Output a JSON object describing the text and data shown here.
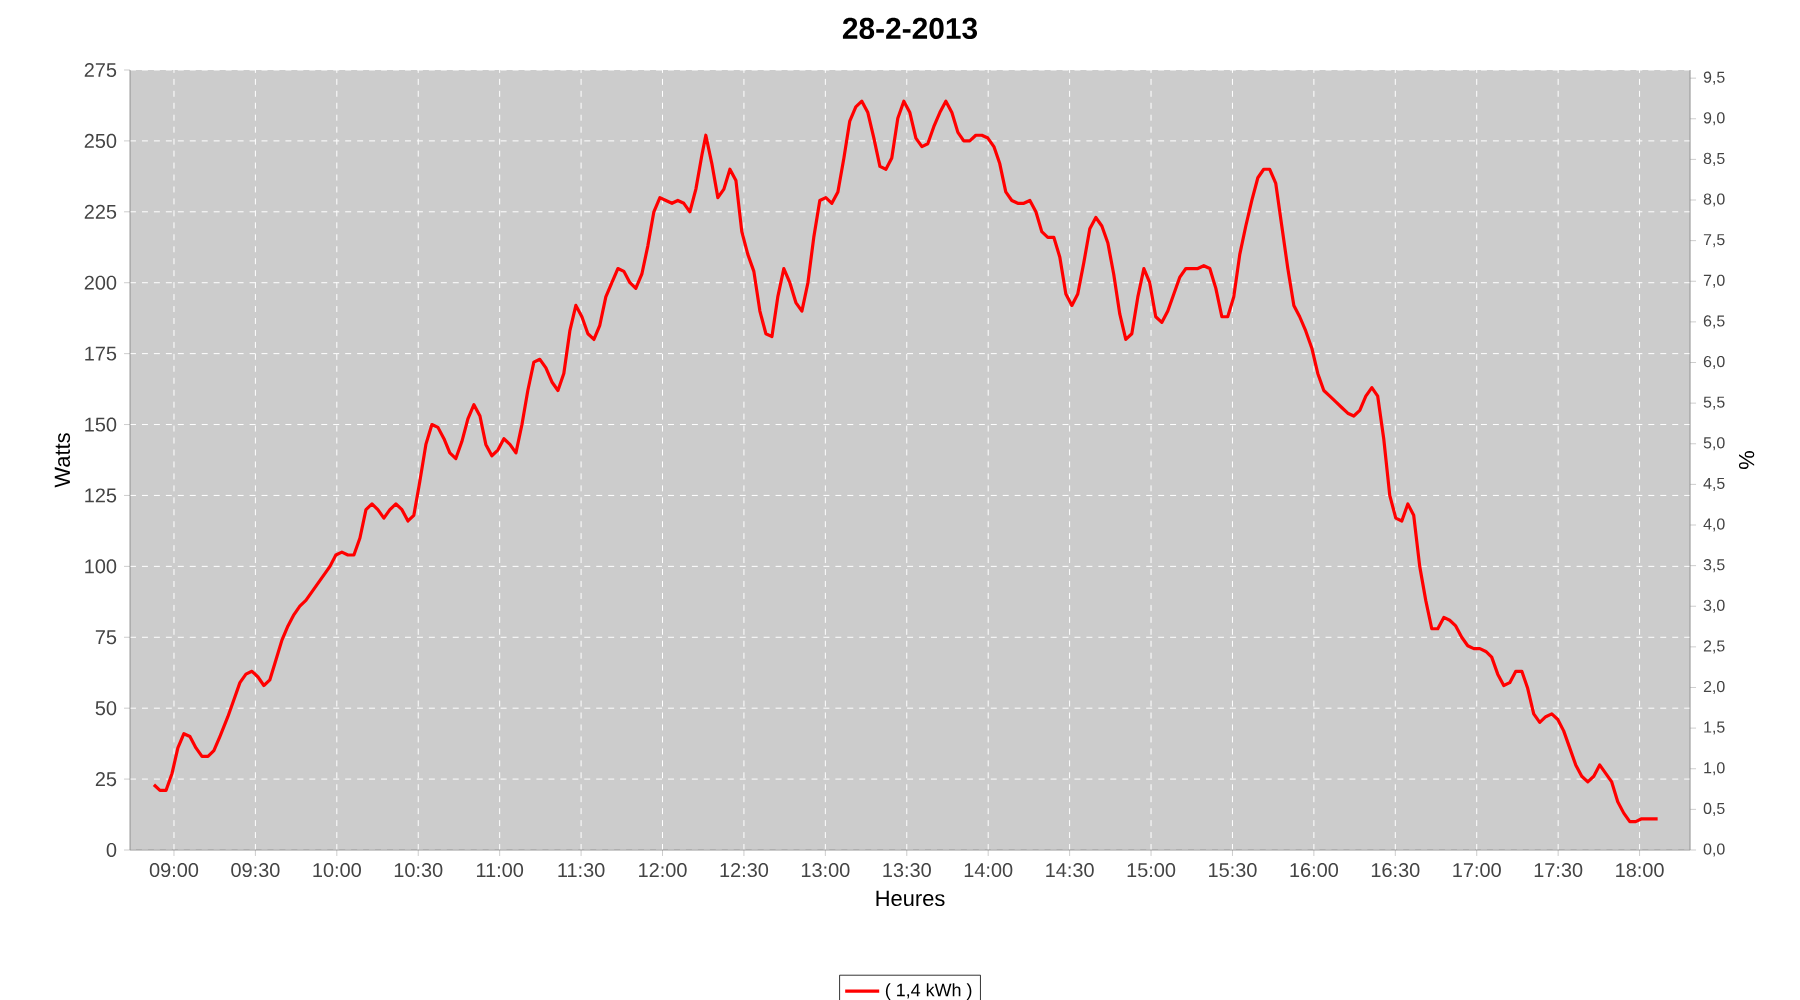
{
  "chart_data": {
    "type": "line",
    "title": "28-2-2013",
    "xlabel": "Heures",
    "ylabel": "Watts",
    "y2label": "%",
    "xlim": [
      8.73,
      18.31
    ],
    "ylim": [
      0,
      275
    ],
    "y2lim": [
      0,
      9.6
    ],
    "xticks": [
      {
        "value": 9,
        "label": "09:00"
      },
      {
        "value": 9.5,
        "label": "09:30"
      },
      {
        "value": 10,
        "label": "10:00"
      },
      {
        "value": 10.5,
        "label": "10:30"
      },
      {
        "value": 11,
        "label": "11:00"
      },
      {
        "value": 11.5,
        "label": "11:30"
      },
      {
        "value": 12,
        "label": "12:00"
      },
      {
        "value": 12.5,
        "label": "12:30"
      },
      {
        "value": 13,
        "label": "13:00"
      },
      {
        "value": 13.5,
        "label": "13:30"
      },
      {
        "value": 14,
        "label": "14:00"
      },
      {
        "value": 14.5,
        "label": "14:30"
      },
      {
        "value": 15,
        "label": "15:00"
      },
      {
        "value": 15.5,
        "label": "15:30"
      },
      {
        "value": 16,
        "label": "16:00"
      },
      {
        "value": 16.5,
        "label": "16:30"
      },
      {
        "value": 17,
        "label": "17:00"
      },
      {
        "value": 17.5,
        "label": "17:30"
      },
      {
        "value": 18,
        "label": "18:00"
      }
    ],
    "yticks": [
      0,
      25,
      50,
      75,
      100,
      125,
      150,
      175,
      200,
      225,
      250,
      275
    ],
    "y2ticks": [
      {
        "value": 0,
        "label": "0,0"
      },
      {
        "value": 0.5,
        "label": "0,5"
      },
      {
        "value": 1,
        "label": "1,0"
      },
      {
        "value": 1.5,
        "label": "1,5"
      },
      {
        "value": 2,
        "label": "2,0"
      },
      {
        "value": 2.5,
        "label": "2,5"
      },
      {
        "value": 3,
        "label": "3,0"
      },
      {
        "value": 3.5,
        "label": "3,5"
      },
      {
        "value": 4,
        "label": "4,0"
      },
      {
        "value": 4.5,
        "label": "4,5"
      },
      {
        "value": 5,
        "label": "5,0"
      },
      {
        "value": 5.5,
        "label": "5,5"
      },
      {
        "value": 6,
        "label": "6,0"
      },
      {
        "value": 6.5,
        "label": "6,5"
      },
      {
        "value": 7,
        "label": "7,0"
      },
      {
        "value": 7.5,
        "label": "7,5"
      },
      {
        "value": 8,
        "label": "8,0"
      },
      {
        "value": 8.5,
        "label": "8,5"
      },
      {
        "value": 9,
        "label": "9,0"
      },
      {
        "value": 9.5,
        "label": "9,5"
      }
    ],
    "grid": true,
    "legend": "bottom",
    "marker": "none",
    "line_style": "solid",
    "series": [
      {
        "name": "( 1,4 kWh )",
        "color": "#ff0000",
        "x": [
          8.877,
          8.914,
          8.951,
          8.988,
          9.024,
          9.061,
          9.098,
          9.135,
          9.172,
          9.209,
          9.245,
          9.282,
          9.331,
          9.368,
          9.405,
          9.442,
          9.479,
          9.516,
          9.552,
          9.589,
          9.626,
          9.663,
          9.7,
          9.737,
          9.773,
          9.81,
          9.847,
          9.884,
          9.921,
          9.958,
          9.994,
          10.031,
          10.068,
          10.105,
          10.142,
          10.179,
          10.216,
          10.252,
          10.289,
          10.326,
          10.363,
          10.4,
          10.437,
          10.473,
          10.51,
          10.547,
          10.584,
          10.621,
          10.658,
          10.694,
          10.731,
          10.768,
          10.805,
          10.842,
          10.879,
          10.915,
          10.952,
          10.989,
          11.026,
          11.063,
          11.1,
          11.137,
          11.173,
          11.21,
          11.247,
          11.284,
          11.321,
          11.358,
          11.394,
          11.431,
          11.468,
          11.505,
          11.542,
          11.579,
          11.615,
          11.652,
          11.689,
          11.726,
          11.763,
          11.8,
          11.836,
          11.873,
          11.91,
          11.947,
          11.984,
          12.021,
          12.058,
          12.094,
          12.131,
          12.168,
          12.205,
          12.242,
          12.266,
          12.303,
          12.34,
          12.377,
          12.414,
          12.451,
          12.487,
          12.524,
          12.561,
          12.598,
          12.635,
          12.672,
          12.708,
          12.745,
          12.782,
          12.819,
          12.856,
          12.893,
          12.929,
          12.966,
          13.003,
          13.04,
          13.077,
          13.114,
          13.15,
          13.187,
          13.224,
          13.261,
          13.298,
          13.335,
          13.372,
          13.408,
          13.445,
          13.482,
          13.519,
          13.556,
          13.593,
          13.629,
          13.666,
          13.703,
          13.74,
          13.777,
          13.814,
          13.85,
          13.887,
          13.924,
          13.961,
          13.998,
          14.035,
          14.071,
          14.108,
          14.145,
          14.182,
          14.219,
          14.256,
          14.293,
          14.329,
          14.366,
          14.403,
          14.44,
          14.477,
          14.514,
          14.55,
          14.587,
          14.624,
          14.661,
          14.698,
          14.735,
          14.771,
          14.808,
          14.845,
          14.882,
          14.919,
          14.956,
          14.992,
          15.029,
          15.066,
          15.103,
          15.14,
          15.177,
          15.214,
          15.25,
          15.287,
          15.324,
          15.361,
          15.398,
          15.435,
          15.471,
          15.508,
          15.545,
          15.582,
          15.619,
          15.656,
          15.692,
          15.729,
          15.766,
          15.803,
          15.84,
          15.877,
          15.913,
          15.95,
          15.987,
          16.024,
          16.061,
          16.098,
          16.135,
          16.171,
          16.208,
          16.245,
          16.282,
          16.319,
          16.356,
          16.392,
          16.429,
          16.466,
          16.503,
          16.54,
          16.577,
          16.613,
          16.65,
          16.687,
          16.724,
          16.761,
          16.798,
          16.834,
          16.871,
          16.908,
          16.945,
          16.982,
          17.019,
          17.056,
          17.092,
          17.129,
          17.166,
          17.203,
          17.24,
          17.277,
          17.313,
          17.35,
          17.387,
          17.424,
          17.461,
          17.498,
          17.534,
          17.571,
          17.608,
          17.645,
          17.682,
          17.719,
          17.755,
          17.792,
          17.829,
          17.866,
          17.903,
          17.94,
          17.976,
          18.013,
          18.05,
          18.087,
          18.111
        ],
        "values": [
          23,
          21,
          21,
          27,
          36,
          41,
          40,
          36,
          33,
          33,
          35,
          40,
          47,
          53,
          59,
          62,
          63,
          61,
          58,
          60,
          67,
          74,
          79,
          83,
          86,
          88,
          91,
          94,
          97,
          100,
          104,
          105,
          104,
          104,
          110,
          120,
          122,
          120,
          117,
          120,
          122,
          120,
          116,
          118,
          130,
          143,
          150,
          149,
          145,
          140,
          138,
          144,
          152,
          157,
          153,
          143,
          139,
          141,
          145,
          143,
          140,
          150,
          162,
          172,
          173,
          170,
          165,
          162,
          168,
          183,
          192,
          188,
          182,
          180,
          185,
          195,
          200,
          205,
          204,
          200,
          198,
          203,
          213,
          225,
          230,
          229,
          228,
          229,
          228,
          225,
          233,
          245,
          252,
          242,
          230,
          233,
          240,
          236,
          218,
          210,
          204,
          190,
          182,
          181,
          195,
          205,
          200,
          193,
          190,
          200,
          216,
          229,
          230,
          228,
          232,
          244,
          257,
          262,
          264,
          260,
          251,
          241,
          240,
          244,
          258,
          264,
          260,
          251,
          248,
          249,
          255,
          260,
          264,
          260,
          253,
          250,
          250,
          252,
          252,
          251,
          248,
          242,
          232,
          229,
          228,
          228,
          229,
          225,
          218,
          216,
          216,
          209,
          196,
          192,
          196,
          207,
          219,
          223,
          220,
          214,
          203,
          189,
          180,
          182,
          195,
          205,
          200,
          188,
          186,
          190,
          196,
          202,
          205,
          205,
          205,
          206,
          205,
          198,
          188,
          188,
          195,
          210,
          220,
          229,
          237,
          240,
          240,
          235,
          220,
          205,
          192,
          188,
          183,
          177,
          168,
          162,
          160,
          158,
          156,
          154,
          153,
          155,
          160,
          163,
          160,
          145,
          125,
          117,
          116,
          122,
          118,
          100,
          88,
          78,
          78,
          82,
          81,
          79,
          75,
          72,
          71,
          71,
          70,
          68,
          62,
          58,
          59,
          63,
          63,
          57,
          48,
          45,
          47,
          48,
          46,
          42,
          36,
          30,
          26,
          24,
          26,
          30,
          27,
          24,
          17,
          13,
          10,
          10,
          11,
          11,
          11,
          11
        ]
      }
    ]
  }
}
